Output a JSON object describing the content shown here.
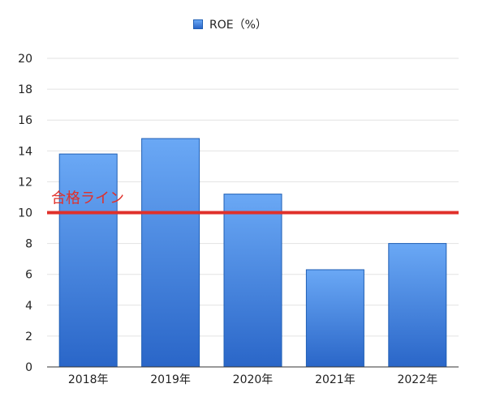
{
  "chart_data": {
    "type": "bar",
    "categories": [
      "2018年",
      "2019年",
      "2020年",
      "2021年",
      "2022年"
    ],
    "series": [
      {
        "name": "ROE（%）",
        "values": [
          13.8,
          14.8,
          11.2,
          6.3,
          8.0
        ]
      }
    ],
    "ylim": [
      0,
      20
    ],
    "yticks": [
      0,
      2,
      4,
      6,
      8,
      10,
      12,
      14,
      16,
      18,
      20
    ],
    "grid": true,
    "legend_position": "top-center",
    "reference_line": {
      "value": 10,
      "label": "合格ライン",
      "color": "#e0302a"
    },
    "colors": {
      "bar_top": "#6aa8f5",
      "bar_bottom": "#2a66c8",
      "bar_edge": "#1f5fb5",
      "grid": "#e2e2e2"
    }
  }
}
